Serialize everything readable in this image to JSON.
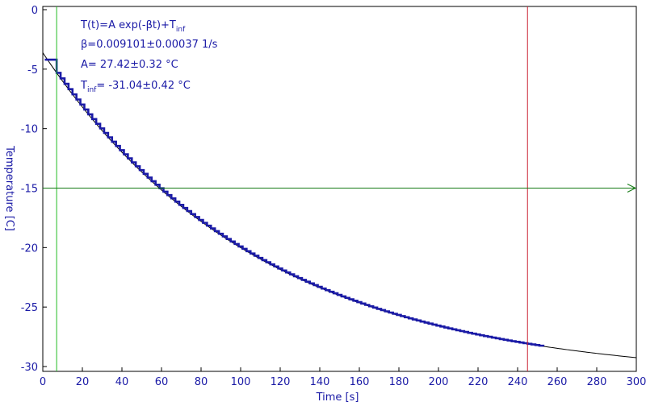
{
  "chart_data": {
    "type": "scatter",
    "xlabel": "Time [s]",
    "ylabel": "Temperature [C]",
    "xlim": [
      0,
      300
    ],
    "ylim": [
      -30,
      0
    ],
    "xticks": [
      "0",
      "20",
      "40",
      "60",
      "80",
      "100",
      "120",
      "140",
      "160",
      "180",
      "200",
      "220",
      "240",
      "260",
      "280",
      "300"
    ],
    "yticks": [
      "0",
      "-5",
      "-10",
      "-15",
      "-20",
      "-25",
      "-30"
    ],
    "grid": false,
    "annotations": {
      "formula_prefix": "T(t)=A exp(-βt)+T",
      "formula_sub": "inf",
      "beta": "β=0.009101±0.00037 1/s",
      "amp": "A= 27.42±0.32 °C",
      "tinf_prefix": "T",
      "tinf_sub": "inf",
      "tinf_rest": "= -31.04±0.42 °C"
    },
    "fit": {
      "A": 27.42,
      "beta": 0.009101,
      "Tinf": -31.04,
      "t_range": [
        0,
        300
      ]
    },
    "data_series": {
      "t_start": 1,
      "t_end": 253,
      "t_step": 2,
      "initial_plateau": -4.2,
      "plateau_end": 6
    },
    "cursors": [
      {
        "axis": "x",
        "value": 7,
        "color": "#22bb22"
      },
      {
        "axis": "x",
        "value": 245,
        "color": "#cc2233"
      },
      {
        "axis": "y",
        "value": -15,
        "color": "#117711"
      }
    ],
    "colors": {
      "data": "#1a1aa6",
      "fit": "#000000",
      "axis": "#000000",
      "text": "#1a1aa6"
    }
  }
}
